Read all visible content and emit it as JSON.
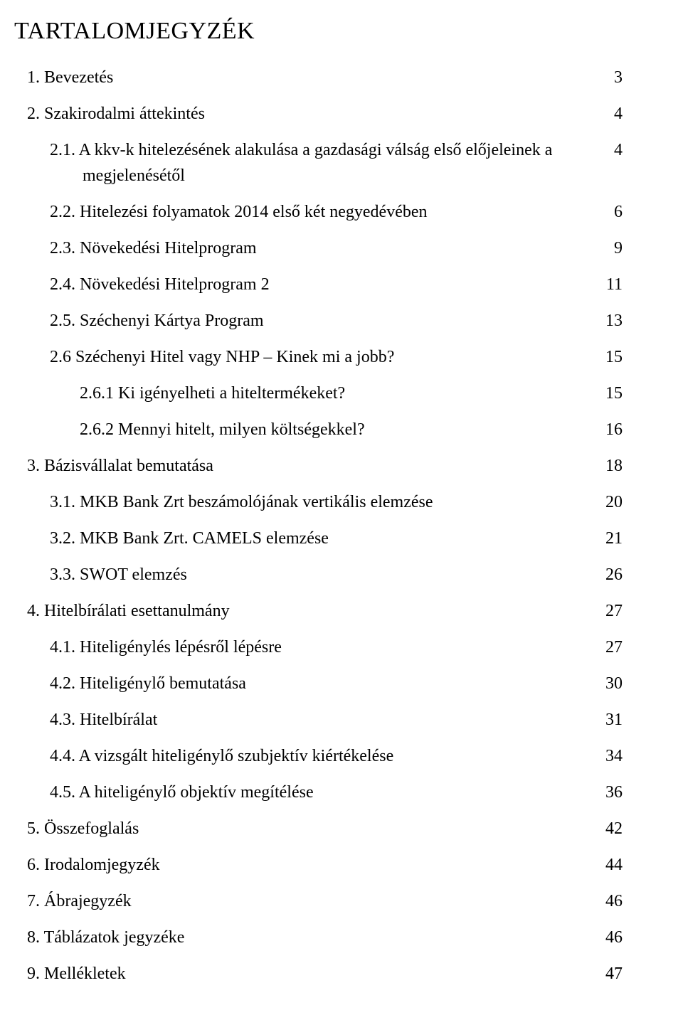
{
  "title": "TARTALOMJEGYZÉK",
  "background_color": "#ffffff",
  "text_color": "#000000",
  "font_family": "Times New Roman",
  "title_fontsize": 34,
  "body_fontsize": 24,
  "entries": [
    {
      "number": "1.",
      "title": "Bevezetés",
      "page": "3",
      "indent": 0
    },
    {
      "number": "2.",
      "title": "Szakirodalmi áttekintés",
      "page": "4",
      "indent": 0
    },
    {
      "number": "2.1.",
      "title": "A kkv-k hitelezésének alakulása a gazdasági válság első előjeleinek a megjelenésétől",
      "page": "4",
      "indent": 1,
      "hang": true
    },
    {
      "number": "2.2.",
      "title": "Hitelezési folyamatok 2014 első két negyedévében",
      "page": "6",
      "indent": 1
    },
    {
      "number": "2.3.",
      "title": "Növekedési Hitelprogram",
      "page": "9",
      "indent": 1
    },
    {
      "number": "2.4.",
      "title": "Növekedési Hitelprogram 2",
      "page": "11",
      "indent": 1
    },
    {
      "number": "2.5.",
      "title": "Széchenyi Kártya Program",
      "page": "13",
      "indent": 1
    },
    {
      "number": "2.6",
      "title": "Széchenyi Hitel vagy NHP – Kinek mi a jobb?",
      "page": "15",
      "indent": 1
    },
    {
      "number": "2.6.1",
      "title": "Ki igényelheti a hiteltermékeket?",
      "page": "15",
      "indent": 2
    },
    {
      "number": "2.6.2",
      "title": "Mennyi hitelt, milyen költségekkel?",
      "page": "16",
      "indent": 2
    },
    {
      "number": "3.",
      "title": "Bázisvállalat bemutatása",
      "page": "18",
      "indent": 0
    },
    {
      "number": "3.1.",
      "title": "MKB Bank Zrt beszámolójának vertikális elemzése",
      "page": "20",
      "indent": 1
    },
    {
      "number": "3.2.",
      "title": "MKB Bank Zrt. CAMELS elemzése",
      "page": "21",
      "indent": 1
    },
    {
      "number": "3.3.",
      "title": "SWOT elemzés",
      "page": "26",
      "indent": 1
    },
    {
      "number": "4.",
      "title": "Hitelbírálati esettanulmány",
      "page": "27",
      "indent": 0
    },
    {
      "number": "4.1.",
      "title": "Hiteligénylés lépésről lépésre",
      "page": "27",
      "indent": 1
    },
    {
      "number": "4.2.",
      "title": "Hiteligénylő bemutatása",
      "page": "30",
      "indent": 1
    },
    {
      "number": "4.3.",
      "title": "Hitelbírálat",
      "page": "31",
      "indent": 1
    },
    {
      "number": "4.4.",
      "title": "A vizsgált hiteligénylő szubjektív kiértékelése",
      "page": "34",
      "indent": 1
    },
    {
      "number": "4.5.",
      "title": "A hiteligénylő objektív megítélése",
      "page": "36",
      "indent": 1
    },
    {
      "number": "5.",
      "title": "Összefoglalás",
      "page": "42",
      "indent": 0
    },
    {
      "number": "6.",
      "title": "Irodalomjegyzék",
      "page": "44",
      "indent": 0
    },
    {
      "number": "7.",
      "title": "Ábrajegyzék",
      "page": "46",
      "indent": 0
    },
    {
      "number": "8.",
      "title": "Táblázatok jegyzéke",
      "page": "46",
      "indent": 0
    },
    {
      "number": "9.",
      "title": "Mellékletek",
      "page": "47",
      "indent": 0
    }
  ]
}
